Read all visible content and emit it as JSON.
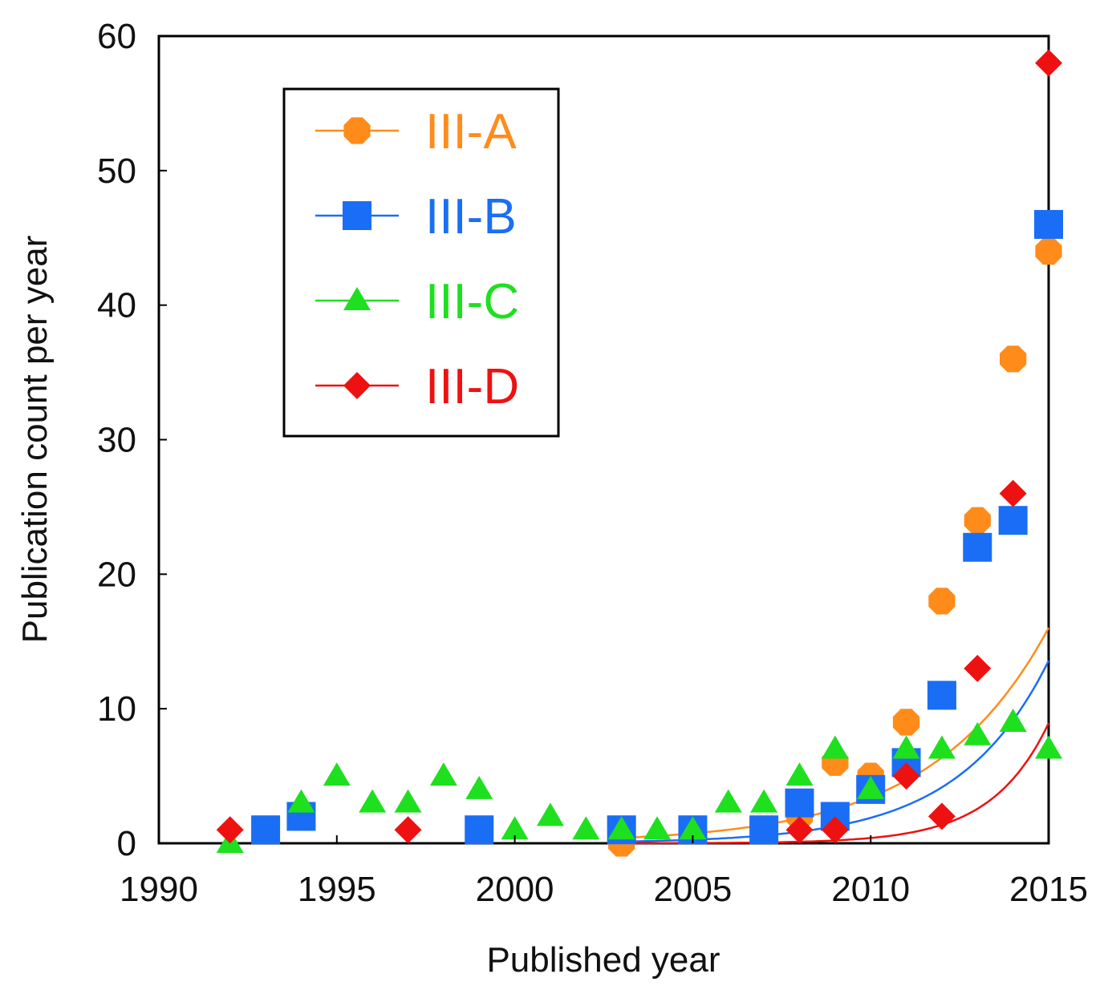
{
  "chart_data": {
    "type": "scatter",
    "title": "",
    "xlabel": "Published year",
    "ylabel": "Publication count per year",
    "xlim": [
      1990,
      2015
    ],
    "ylim": [
      0,
      60
    ],
    "xticks": [
      "1990",
      "1995",
      "2000",
      "2005",
      "2010",
      "2015"
    ],
    "yticks": [
      "0",
      "10",
      "20",
      "30",
      "40",
      "50",
      "60"
    ],
    "legend_position": "top-left",
    "series": [
      {
        "name": "III-A",
        "color": "#ff8c1a",
        "marker": "octagon",
        "points": [
          [
            2003,
            0
          ],
          [
            2008,
            2
          ],
          [
            2009,
            6
          ],
          [
            2010,
            5
          ],
          [
            2011,
            9
          ],
          [
            2012,
            18
          ],
          [
            2013,
            24
          ],
          [
            2014,
            36
          ],
          [
            2015,
            44
          ]
        ],
        "fit": {
          "a": 0.4,
          "b": 0.3075
        }
      },
      {
        "name": "III-B",
        "color": "#1a6ef5",
        "marker": "square",
        "points": [
          [
            1993,
            1
          ],
          [
            1994,
            2
          ],
          [
            1999,
            1
          ],
          [
            2003,
            1
          ],
          [
            2005,
            1
          ],
          [
            2007,
            1
          ],
          [
            2008,
            3
          ],
          [
            2009,
            2
          ],
          [
            2010,
            4
          ],
          [
            2011,
            6
          ],
          [
            2012,
            11
          ],
          [
            2013,
            22
          ],
          [
            2014,
            24
          ],
          [
            2015,
            46
          ]
        ],
        "fit": {
          "a": 0.12,
          "b": 0.394
        }
      },
      {
        "name": "III-C",
        "color": "#1ee01e",
        "marker": "triangle",
        "points": [
          [
            1992,
            0
          ],
          [
            1994,
            3
          ],
          [
            1995,
            5
          ],
          [
            1996,
            3
          ],
          [
            1997,
            3
          ],
          [
            1998,
            5
          ],
          [
            1999,
            4
          ],
          [
            2000,
            1
          ],
          [
            2001,
            2
          ],
          [
            2002,
            1
          ],
          [
            2003,
            1
          ],
          [
            2004,
            1
          ],
          [
            2005,
            1
          ],
          [
            2006,
            3
          ],
          [
            2007,
            3
          ],
          [
            2008,
            5
          ],
          [
            2009,
            7
          ],
          [
            2010,
            4
          ],
          [
            2011,
            7
          ],
          [
            2012,
            7
          ],
          [
            2013,
            8
          ],
          [
            2014,
            9
          ],
          [
            2015,
            7
          ]
        ]
      },
      {
        "name": "III-D",
        "color": "#ee1111",
        "marker": "diamond",
        "points": [
          [
            1992,
            1
          ],
          [
            1997,
            1
          ],
          [
            2008,
            1
          ],
          [
            2009,
            1
          ],
          [
            2011,
            5
          ],
          [
            2012,
            2
          ],
          [
            2013,
            13
          ],
          [
            2014,
            26
          ],
          [
            2015,
            58
          ]
        ],
        "fit": {
          "a": 0.005,
          "b": 0.624
        }
      }
    ]
  }
}
